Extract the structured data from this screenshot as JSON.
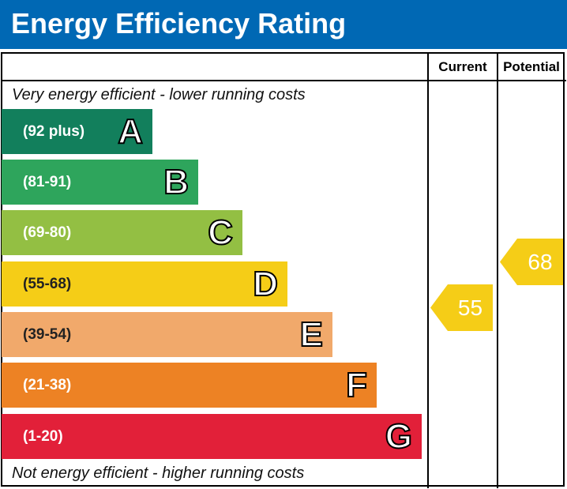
{
  "title": "Energy Efficiency Rating",
  "columns": {
    "current": "Current",
    "potential": "Potential"
  },
  "top_caption": "Very energy efficient - lower running costs",
  "bottom_caption": "Not energy efficient - higher running costs",
  "chart_data": {
    "type": "bar",
    "title": "Energy Efficiency Rating",
    "categories": [
      "A",
      "B",
      "C",
      "D",
      "E",
      "F",
      "G"
    ],
    "bands": [
      {
        "letter": "A",
        "range": "(92 plus)",
        "color": "#127f5c"
      },
      {
        "letter": "B",
        "range": "(81-91)",
        "color": "#2ea55c"
      },
      {
        "letter": "C",
        "range": "(69-80)",
        "color": "#93bf43"
      },
      {
        "letter": "D",
        "range": "(55-68)",
        "color": "#f5cd17"
      },
      {
        "letter": "E",
        "range": "(39-54)",
        "color": "#f1a96b"
      },
      {
        "letter": "F",
        "range": "(21-38)",
        "color": "#ed8224"
      },
      {
        "letter": "G",
        "range": "(1-20)",
        "color": "#e22039"
      }
    ],
    "current": {
      "label": "Current",
      "value": 55,
      "band": "D",
      "color": "#f5cd17"
    },
    "potential": {
      "label": "Potential",
      "value": 68,
      "band": "D",
      "color": "#f5cd17"
    }
  }
}
